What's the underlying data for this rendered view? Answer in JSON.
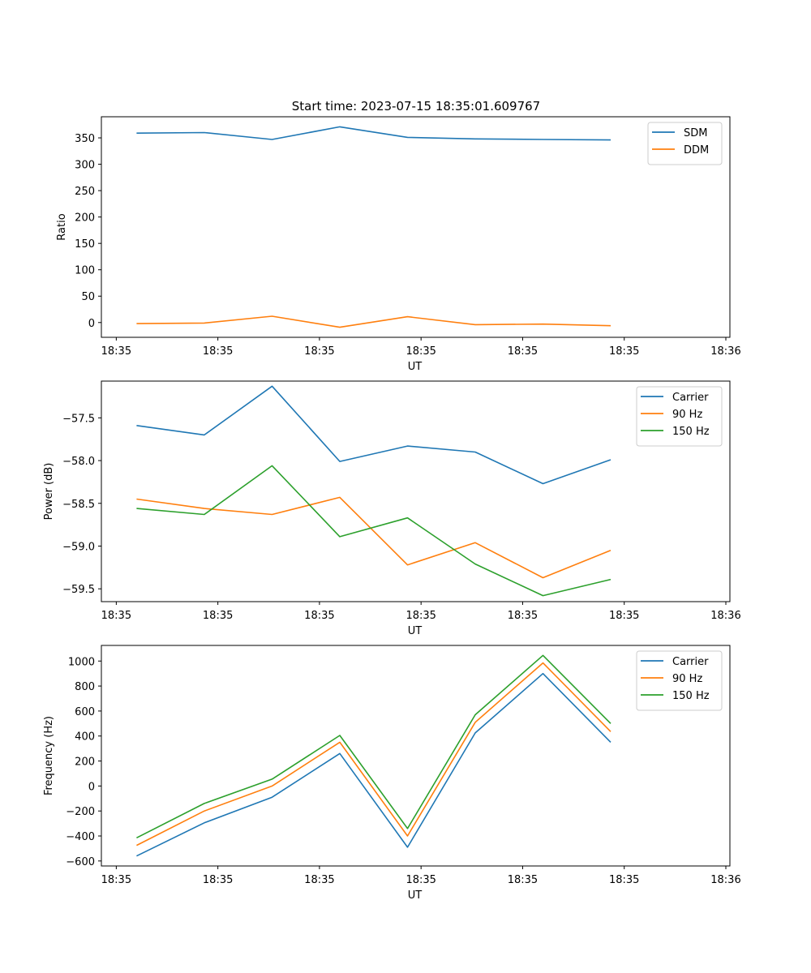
{
  "figure_title": "Start time: 2023-07-15 18:35:01.609767",
  "colors": {
    "c0": "#1f77b4",
    "c1": "#ff7f0e",
    "c2": "#2ca02c"
  },
  "chart_data": [
    {
      "type": "line",
      "title": "Start time: 2023-07-15 18:35:01.609767",
      "xlabel": "UT",
      "ylabel": "Ratio",
      "x": [
        1,
        2,
        3,
        4,
        5,
        6,
        7,
        8
      ],
      "xlim": [
        0.48,
        9.76
      ],
      "ylim": [
        -28,
        390
      ],
      "xticks": [
        0.7,
        2.2,
        3.7,
        5.2,
        6.7,
        8.2,
        9.7
      ],
      "xtick_labels": [
        "18:35",
        "18:35",
        "18:35",
        "18:35",
        "18:35",
        "18:35",
        "18:36"
      ],
      "yticks": [
        0,
        50,
        100,
        150,
        200,
        250,
        300,
        350
      ],
      "ytick_labels": [
        "0",
        "50",
        "100",
        "150",
        "200",
        "250",
        "300",
        "350"
      ],
      "legend_position": "top-right",
      "series": [
        {
          "name": "SDM",
          "color": "#1f77b4",
          "values": [
            359,
            360,
            347,
            371,
            351,
            348,
            347,
            346
          ]
        },
        {
          "name": "DDM",
          "color": "#ff7f0e",
          "values": [
            -2,
            -1,
            12,
            -9,
            11,
            -4,
            -3,
            -6
          ]
        }
      ]
    },
    {
      "type": "line",
      "xlabel": "UT",
      "ylabel": "Power (dB)",
      "x": [
        1,
        2,
        3,
        4,
        5,
        6,
        7,
        8
      ],
      "xlim": [
        0.48,
        9.76
      ],
      "ylim": [
        -59.65,
        -57.07
      ],
      "xticks": [
        0.7,
        2.2,
        3.7,
        5.2,
        6.7,
        8.2,
        9.7
      ],
      "xtick_labels": [
        "18:35",
        "18:35",
        "18:35",
        "18:35",
        "18:35",
        "18:35",
        "18:36"
      ],
      "yticks": [
        -59.5,
        -59.0,
        -58.5,
        -58.0,
        -57.5
      ],
      "ytick_labels": [
        "−59.5",
        "−59.0",
        "−58.5",
        "−58.0",
        "−57.5"
      ],
      "legend_position": "top-right",
      "series": [
        {
          "name": "Carrier",
          "color": "#1f77b4",
          "values": [
            -57.59,
            -57.7,
            -57.13,
            -58.01,
            -57.83,
            -57.9,
            -58.27,
            -57.99
          ]
        },
        {
          "name": "90 Hz",
          "color": "#ff7f0e",
          "values": [
            -58.45,
            -58.56,
            -58.63,
            -58.43,
            -59.22,
            -58.96,
            -59.37,
            -59.05
          ]
        },
        {
          "name": "150 Hz",
          "color": "#2ca02c",
          "values": [
            -58.56,
            -58.63,
            -58.06,
            -58.89,
            -58.67,
            -59.21,
            -59.58,
            -59.39
          ]
        }
      ]
    },
    {
      "type": "line",
      "xlabel": "UT",
      "ylabel": "Frequency (Hz)",
      "x": [
        1,
        2,
        3,
        4,
        5,
        6,
        7,
        8
      ],
      "xlim": [
        0.48,
        9.76
      ],
      "ylim": [
        -640,
        1125
      ],
      "xticks": [
        0.7,
        2.2,
        3.7,
        5.2,
        6.7,
        8.2,
        9.7
      ],
      "xtick_labels": [
        "18:35",
        "18:35",
        "18:35",
        "18:35",
        "18:35",
        "18:35",
        "18:36"
      ],
      "yticks": [
        -600,
        -400,
        -200,
        0,
        200,
        400,
        600,
        800,
        1000
      ],
      "ytick_labels": [
        "−600",
        "−400",
        "−200",
        "0",
        "200",
        "400",
        "600",
        "800",
        "1000"
      ],
      "legend_position": "top-right",
      "series": [
        {
          "name": "Carrier",
          "color": "#1f77b4",
          "values": [
            -560,
            -295,
            -90,
            260,
            -490,
            425,
            900,
            350
          ]
        },
        {
          "name": "90 Hz",
          "color": "#ff7f0e",
          "values": [
            -475,
            -200,
            0,
            350,
            -400,
            510,
            985,
            435
          ]
        },
        {
          "name": "150 Hz",
          "color": "#2ca02c",
          "values": [
            -415,
            -140,
            55,
            405,
            -340,
            570,
            1045,
            500
          ]
        }
      ]
    }
  ]
}
